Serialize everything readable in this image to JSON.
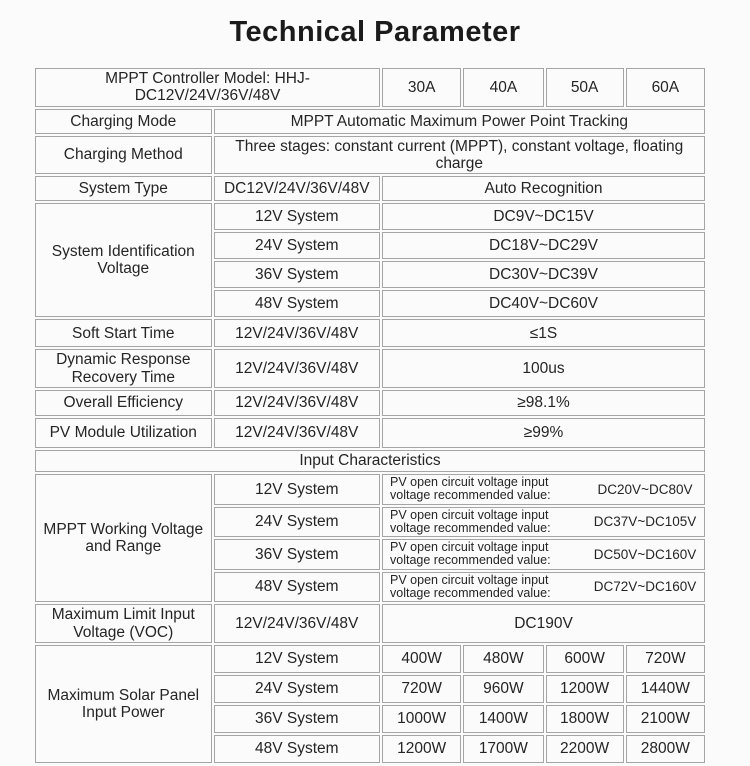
{
  "colors": {
    "background": "#fbfbfb",
    "border": "#a5a5a5",
    "text": "#252525"
  },
  "title": "Technical Parameter",
  "table": {
    "model_row": {
      "label": "MPPT Controller Model: HHJ-DC12V/24V/36V/48V",
      "amps": [
        "30A",
        "40A",
        "50A",
        "60A"
      ]
    },
    "charging_mode": {
      "label": "Charging Mode",
      "value": "MPPT Automatic Maximum Power Point Tracking"
    },
    "charging_method": {
      "label": "Charging Method",
      "value": "Three stages: constant current (MPPT), constant voltage, floating charge"
    },
    "system_type": {
      "label": "System Type",
      "sub": "DC12V/24V/36V/48V",
      "value": "Auto Recognition"
    },
    "system_id": {
      "label": "System Identification Voltage",
      "rows": [
        {
          "system": "12V System",
          "value": "DC9V~DC15V"
        },
        {
          "system": "24V System",
          "value": "DC18V~DC29V"
        },
        {
          "system": "36V System",
          "value": "DC30V~DC39V"
        },
        {
          "system": "48V System",
          "value": "DC40V~DC60V"
        }
      ]
    },
    "soft_start": {
      "label": "Soft Start Time",
      "sub": "12V/24V/36V/48V",
      "value": "≤1S"
    },
    "dynamic_response": {
      "label": "Dynamic Response Recovery Time",
      "sub": "12V/24V/36V/48V",
      "value": "100us"
    },
    "overall_efficiency": {
      "label": "Overall Efficiency",
      "sub": "12V/24V/36V/48V",
      "value": "≥98.1%"
    },
    "pv_module_utilization": {
      "label": "PV Module Utilization",
      "sub": "12V/24V/36V/48V",
      "value": "≥99%"
    },
    "input_characteristics_header": "Input Characteristics",
    "mppt_working": {
      "label": "MPPT Working Voltage and Range",
      "note": "PV open circuit voltage input voltage recommended value:",
      "rows": [
        {
          "system": "12V System",
          "value": "DC20V~DC80V"
        },
        {
          "system": "24V System",
          "value": "DC37V~DC105V"
        },
        {
          "system": "36V System",
          "value": "DC50V~DC160V"
        },
        {
          "system": "48V System",
          "value": "DC72V~DC160V"
        }
      ]
    },
    "max_limit_voltage": {
      "label": "Maximum Limit Input Voltage (VOC)",
      "sub": "12V/24V/36V/48V",
      "value": "DC190V"
    },
    "max_solar_power": {
      "label": "Maximum Solar Panel Input Power",
      "rows": [
        {
          "system": "12V System",
          "values": [
            "400W",
            "480W",
            "600W",
            "720W"
          ]
        },
        {
          "system": "24V System",
          "values": [
            "720W",
            "960W",
            "1200W",
            "1440W"
          ]
        },
        {
          "system": "36V System",
          "values": [
            "1000W",
            "1400W",
            "1800W",
            "2100W"
          ]
        },
        {
          "system": "48V System",
          "values": [
            "1200W",
            "1700W",
            "2200W",
            "2800W"
          ]
        }
      ]
    }
  }
}
